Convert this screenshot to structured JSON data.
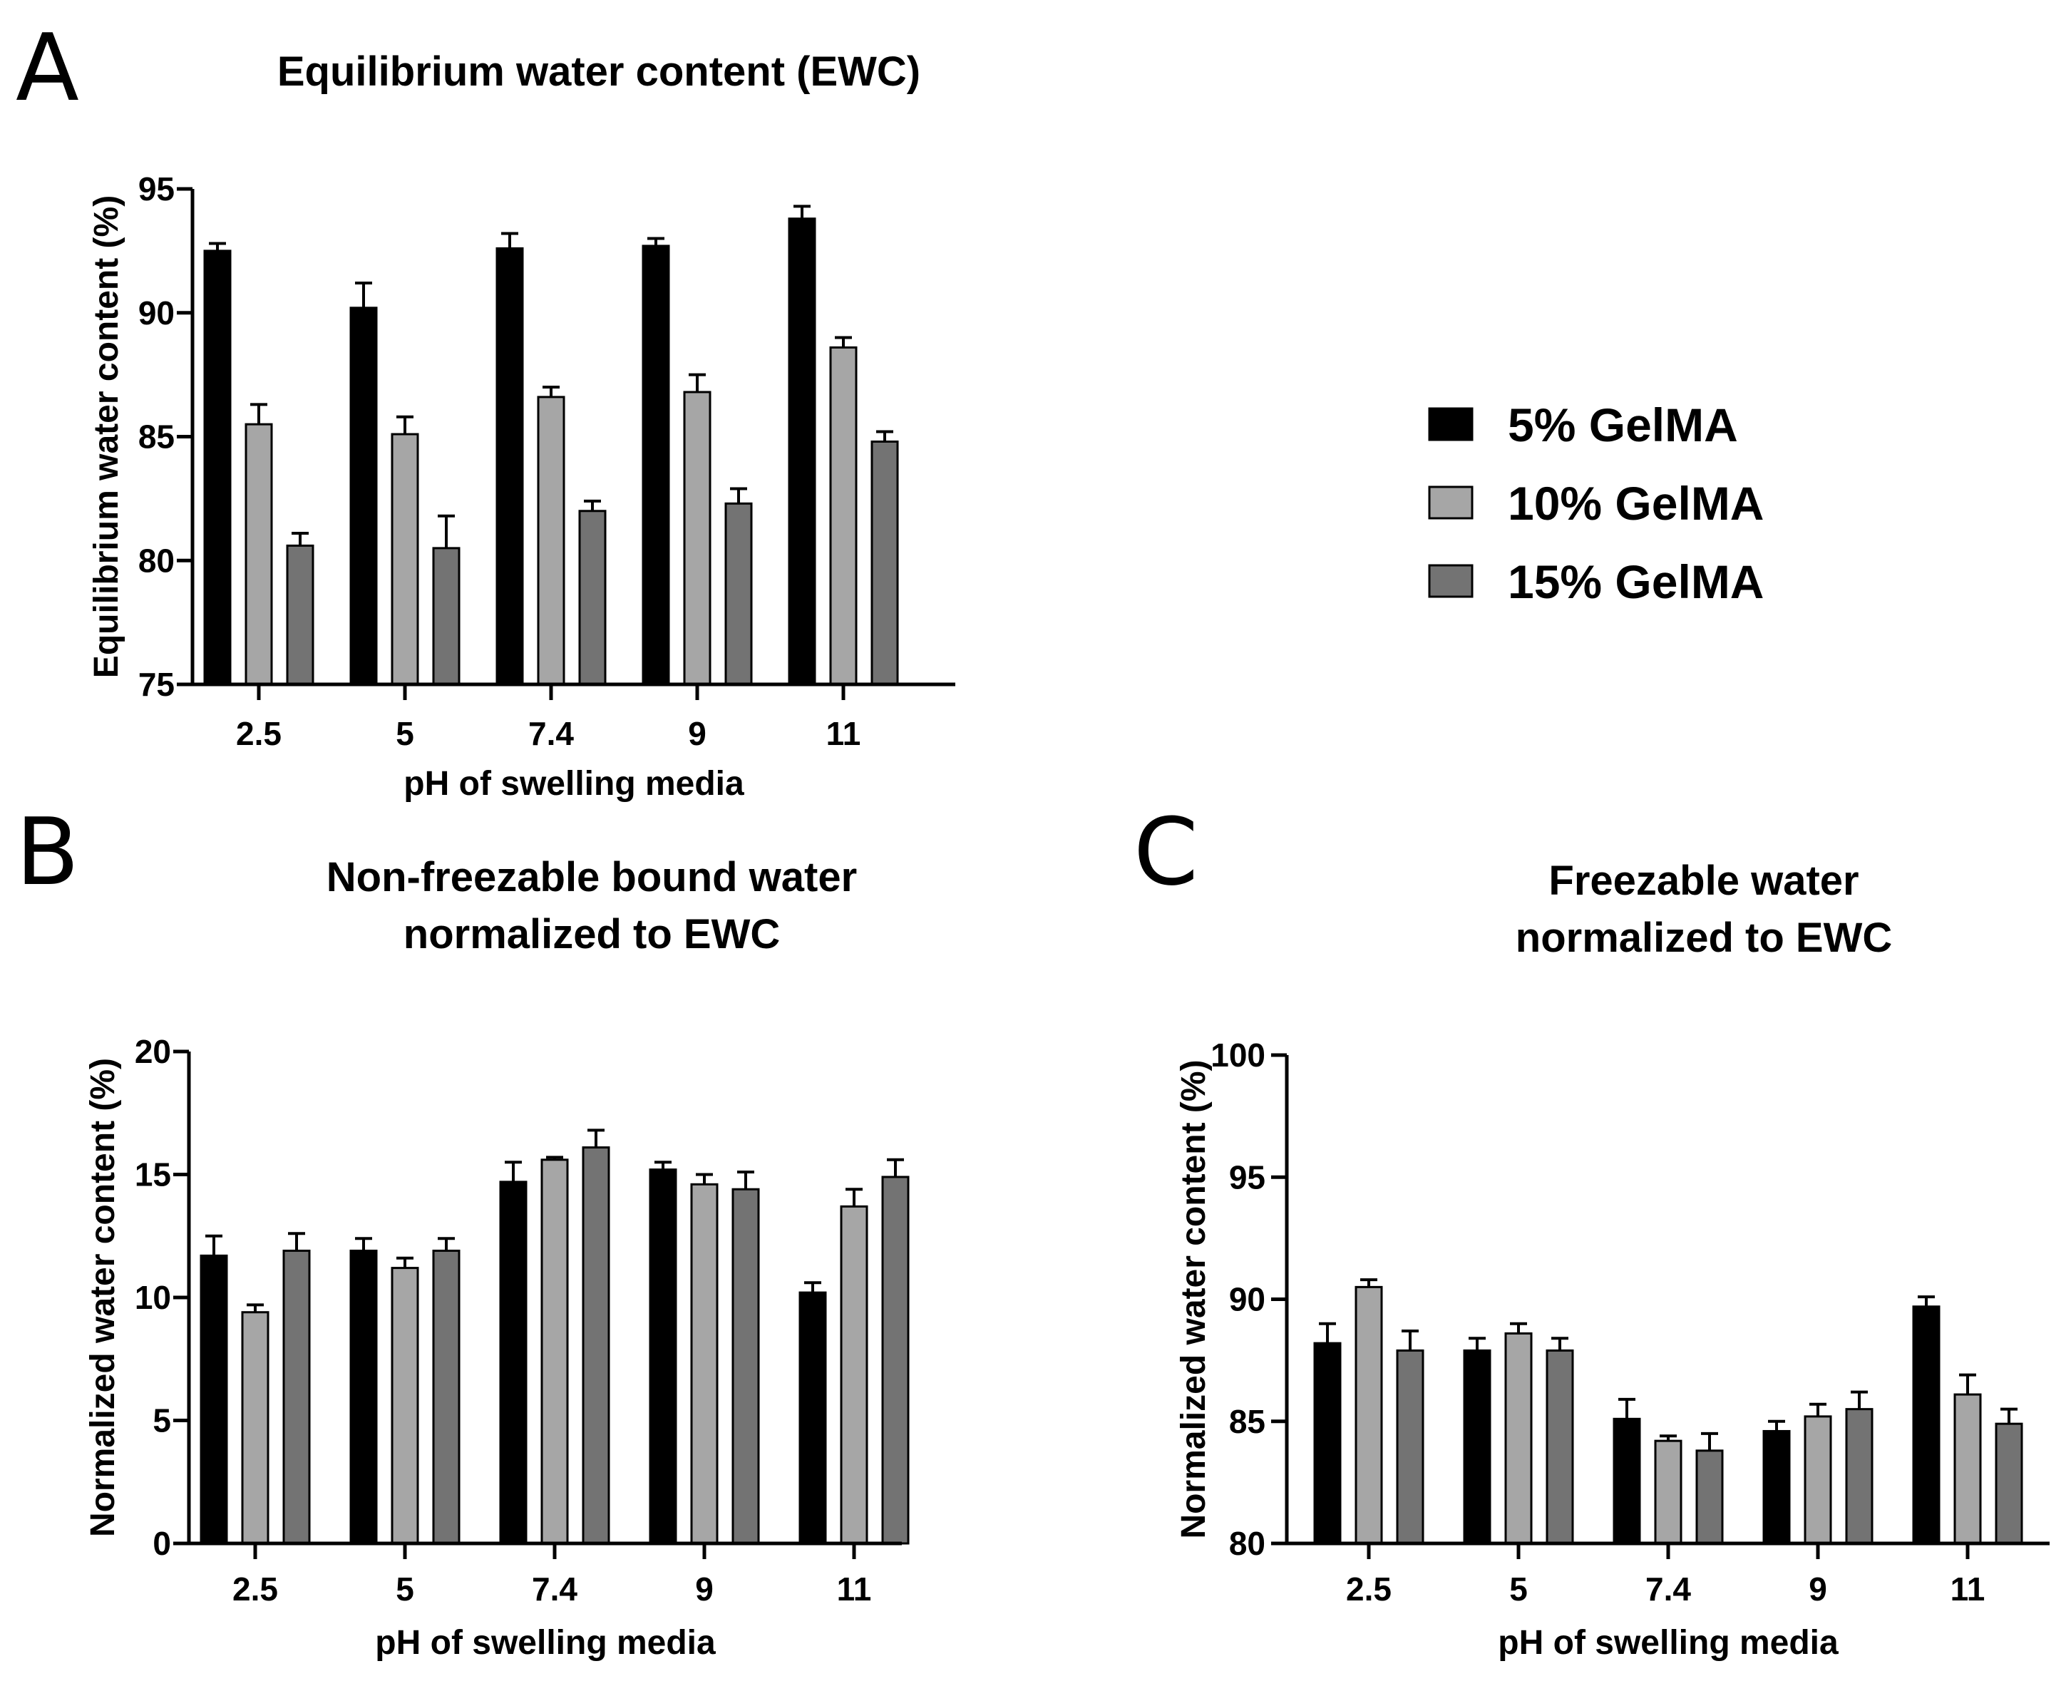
{
  "panel_letters": [
    "A",
    "B",
    "C"
  ],
  "legend": {
    "items": [
      {
        "label": "5% GelMA",
        "color": "#000000"
      },
      {
        "label": "10% GelMA",
        "color": "#a6a6a6"
      },
      {
        "label": "15% GelMA",
        "color": "#737373"
      }
    ]
  },
  "chart_data": [
    {
      "type": "bar",
      "panel": "A",
      "title": [
        "Equilibrium water content (EWC)"
      ],
      "xlabel": "pH of swelling media",
      "ylabel": "Equilibrium water content (%)",
      "categories": [
        "2.5",
        "5",
        "7.4",
        "9",
        "11"
      ],
      "ylim": [
        75,
        95
      ],
      "yticks": [
        "75",
        "80",
        "85",
        "90",
        "95"
      ],
      "series": [
        {
          "name": "5% GelMA",
          "values": [
            92.5,
            90.2,
            92.6,
            92.7,
            93.8
          ],
          "errors": [
            0.3,
            1.0,
            0.6,
            0.3,
            0.5
          ]
        },
        {
          "name": "10% GelMA",
          "values": [
            85.5,
            85.1,
            86.6,
            86.8,
            88.6
          ],
          "errors": [
            0.8,
            0.7,
            0.4,
            0.7,
            0.4
          ]
        },
        {
          "name": "15% GelMA",
          "values": [
            80.6,
            80.5,
            82.0,
            82.3,
            84.8
          ],
          "errors": [
            0.5,
            1.3,
            0.4,
            0.6,
            0.4
          ]
        }
      ]
    },
    {
      "type": "bar",
      "panel": "B",
      "title": [
        "Non-freezable bound water",
        "normalized to EWC"
      ],
      "xlabel": "pH of swelling media",
      "ylabel": "Normalized water content (%)",
      "categories": [
        "2.5",
        "5",
        "7.4",
        "9",
        "11"
      ],
      "ylim": [
        0,
        20
      ],
      "yticks": [
        "0",
        "5",
        "10",
        "15",
        "20"
      ],
      "series": [
        {
          "name": "5% GelMA",
          "values": [
            11.7,
            11.9,
            14.7,
            15.2,
            10.2
          ],
          "errors": [
            0.8,
            0.5,
            0.8,
            0.3,
            0.4
          ]
        },
        {
          "name": "10% GelMA",
          "values": [
            9.4,
            11.2,
            15.6,
            14.6,
            13.7
          ],
          "errors": [
            0.3,
            0.4,
            0.1,
            0.4,
            0.7
          ]
        },
        {
          "name": "15% GelMA",
          "values": [
            11.9,
            11.9,
            16.1,
            14.4,
            14.9
          ],
          "errors": [
            0.7,
            0.5,
            0.7,
            0.7,
            0.7
          ]
        }
      ]
    },
    {
      "type": "bar",
      "panel": "C",
      "title": [
        "Freezable water",
        "normalized to EWC"
      ],
      "xlabel": "pH of swelling media",
      "ylabel": "Normalized water content (%)",
      "categories": [
        "2.5",
        "5",
        "7.4",
        "9",
        "11"
      ],
      "ylim": [
        80,
        100
      ],
      "yticks": [
        "80",
        "85",
        "90",
        "95",
        "100"
      ],
      "series": [
        {
          "name": "5% GelMA",
          "values": [
            88.2,
            87.9,
            85.1,
            84.6,
            89.7
          ],
          "errors": [
            0.8,
            0.5,
            0.8,
            0.4,
            0.4
          ]
        },
        {
          "name": "10% GelMA",
          "values": [
            90.5,
            88.6,
            84.2,
            85.2,
            86.1
          ],
          "errors": [
            0.3,
            0.4,
            0.2,
            0.5,
            0.8
          ]
        },
        {
          "name": "15% GelMA",
          "values": [
            87.9,
            87.9,
            83.8,
            85.5,
            84.9
          ],
          "errors": [
            0.8,
            0.5,
            0.7,
            0.7,
            0.6
          ]
        }
      ]
    }
  ]
}
